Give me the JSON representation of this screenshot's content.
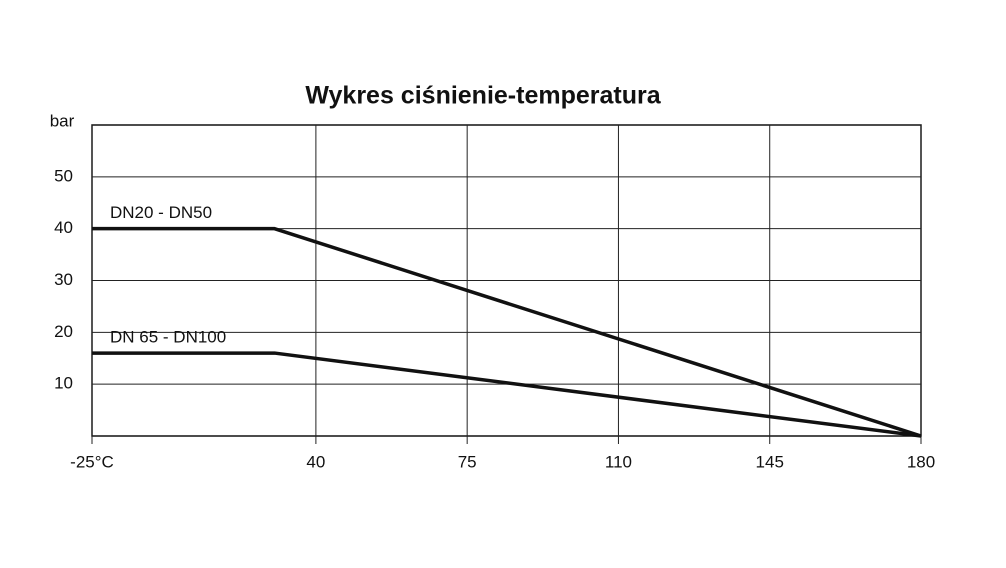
{
  "chart_data": {
    "type": "line",
    "title": "Wykres ciśnienie-temperatura",
    "y_label": "bar",
    "x": [
      -25,
      28,
      180
    ],
    "series": [
      {
        "name": "DN20 - DN50",
        "color": "#111111",
        "values": [
          40,
          40,
          0
        ]
      },
      {
        "name": "DN 65 - DN100",
        "color": "#111111",
        "values": [
          16,
          16,
          0
        ]
      }
    ],
    "xlim": [
      -25,
      180
    ],
    "xticks": [
      {
        "value": -25,
        "label": "-25°C"
      },
      40,
      75,
      110,
      145,
      180
    ],
    "ylim": [
      0,
      60
    ],
    "yticks": [
      10,
      20,
      30,
      40,
      50
    ],
    "grid": true
  }
}
